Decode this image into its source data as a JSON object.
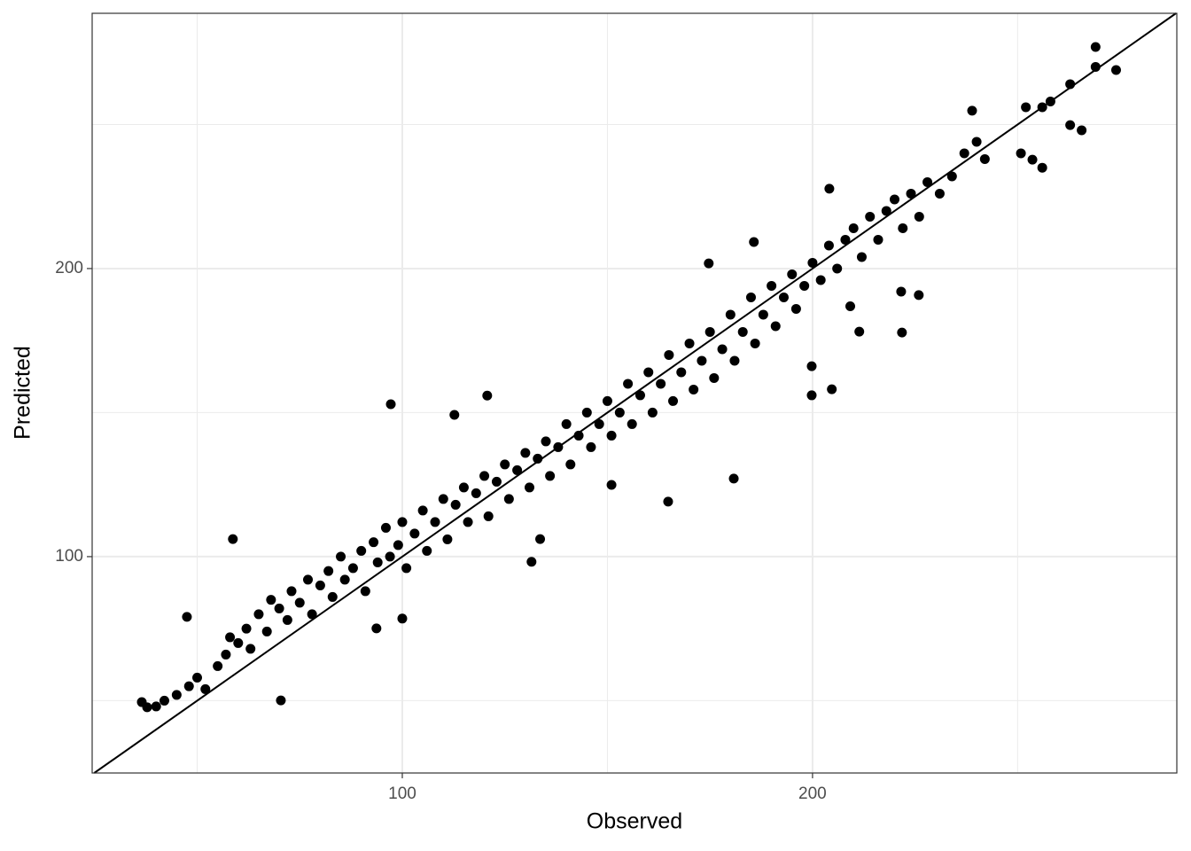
{
  "chart_data": {
    "type": "scatter",
    "x_label": "Observed",
    "y_label": "Predicted",
    "xlim": [
      24.4,
      288.8
    ],
    "ylim": [
      24.9,
      288.6
    ],
    "xticks": [
      100,
      200
    ],
    "yticks": [
      100,
      200
    ],
    "minor_ticks": [
      50,
      150,
      250
    ],
    "grid": true,
    "identity_line": true,
    "color": "#000000",
    "x": [
      269,
      274,
      269,
      262.8,
      238.9,
      262.8,
      265.6,
      250.8,
      256,
      253.6,
      252,
      256,
      258,
      97.2,
      58.7,
      70.4,
      164.8,
      180.8,
      199.8,
      204.7,
      199.8,
      225.9,
      221.6,
      221.8,
      211.4,
      209.2,
      131.5,
      133.6,
      112.7,
      120.7,
      47.5,
      36.5,
      37.8,
      204.1,
      185.7,
      174.7,
      151,
      100,
      93.7,
      40,
      42,
      45,
      48,
      50,
      52,
      55,
      57,
      58,
      60,
      62,
      63,
      65,
      67,
      68,
      70,
      72,
      73,
      75,
      77,
      78,
      80,
      82,
      83,
      85,
      86,
      88,
      90,
      91,
      93,
      94,
      96,
      97,
      99,
      100,
      101,
      103,
      105,
      106,
      108,
      110,
      111,
      113,
      115,
      116,
      118,
      120,
      121,
      123,
      125,
      126,
      128,
      130,
      131,
      133,
      135,
      136,
      138,
      140,
      141,
      143,
      145,
      146,
      148,
      150,
      151,
      153,
      155,
      156,
      158,
      160,
      161,
      163,
      165,
      166,
      168,
      170,
      171,
      173,
      175,
      176,
      178,
      180,
      181,
      183,
      185,
      186,
      188,
      190,
      191,
      193,
      195,
      196,
      198,
      200,
      202,
      204,
      206,
      208,
      210,
      212,
      214,
      216,
      218,
      220,
      222,
      224,
      226,
      228,
      231,
      234,
      237,
      240,
      242
    ],
    "y": [
      276.9,
      268.9,
      270,
      264,
      254.8,
      249.8,
      248,
      240,
      235,
      237.8,
      256,
      256,
      258,
      152.9,
      106.1,
      50.1,
      119.1,
      127.1,
      156,
      158.1,
      166.1,
      190.8,
      192,
      177.8,
      178.1,
      186.9,
      98.2,
      106.1,
      149.2,
      155.9,
      79.1,
      49.5,
      47.7,
      227.7,
      209.2,
      201.8,
      124.9,
      78.5,
      75.1,
      48,
      50,
      52,
      55,
      58,
      54,
      62,
      66,
      72,
      70,
      75,
      68,
      80,
      74,
      85,
      82,
      78,
      88,
      84,
      92,
      80,
      90,
      95,
      86,
      100,
      92,
      96,
      102,
      88,
      105,
      98,
      110,
      100,
      104,
      112,
      96,
      108,
      116,
      102,
      112,
      120,
      106,
      118,
      124,
      112,
      122,
      128,
      114,
      126,
      132,
      120,
      130,
      136,
      124,
      134,
      140,
      128,
      138,
      146,
      132,
      142,
      150,
      138,
      146,
      154,
      142,
      150,
      160,
      146,
      156,
      164,
      150,
      160,
      170,
      154,
      164,
      174,
      158,
      168,
      178,
      162,
      172,
      184,
      168,
      178,
      190,
      174,
      184,
      194,
      180,
      190,
      198,
      186,
      194,
      202,
      196,
      208,
      200,
      210,
      214,
      204,
      218,
      210,
      220,
      224,
      214,
      226,
      218,
      230,
      226,
      232,
      240,
      244,
      238
    ]
  }
}
